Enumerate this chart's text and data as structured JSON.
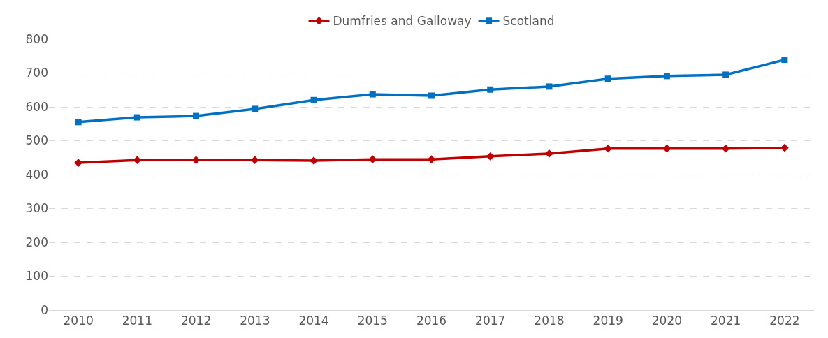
{
  "chart_data": {
    "type": "line",
    "categories": [
      "2010",
      "2011",
      "2012",
      "2013",
      "2014",
      "2015",
      "2016",
      "2017",
      "2018",
      "2019",
      "2020",
      "2021",
      "2022"
    ],
    "series": [
      {
        "name": "Dumfries and Galloway",
        "color": "#c00000",
        "marker": "diamond",
        "values": [
          435,
          443,
          443,
          443,
          441,
          445,
          445,
          454,
          462,
          477,
          477,
          477,
          479
        ]
      },
      {
        "name": "Scotland",
        "color": "#0070c0",
        "marker": "square",
        "values": [
          555,
          569,
          573,
          594,
          620,
          637,
          633,
          651,
          660,
          683,
          691,
          695,
          739
        ]
      }
    ],
    "ylim": [
      0,
      800
    ],
    "yticks": [
      0,
      100,
      200,
      300,
      400,
      500,
      600,
      700,
      800
    ],
    "grid": "y",
    "legend": "top"
  }
}
